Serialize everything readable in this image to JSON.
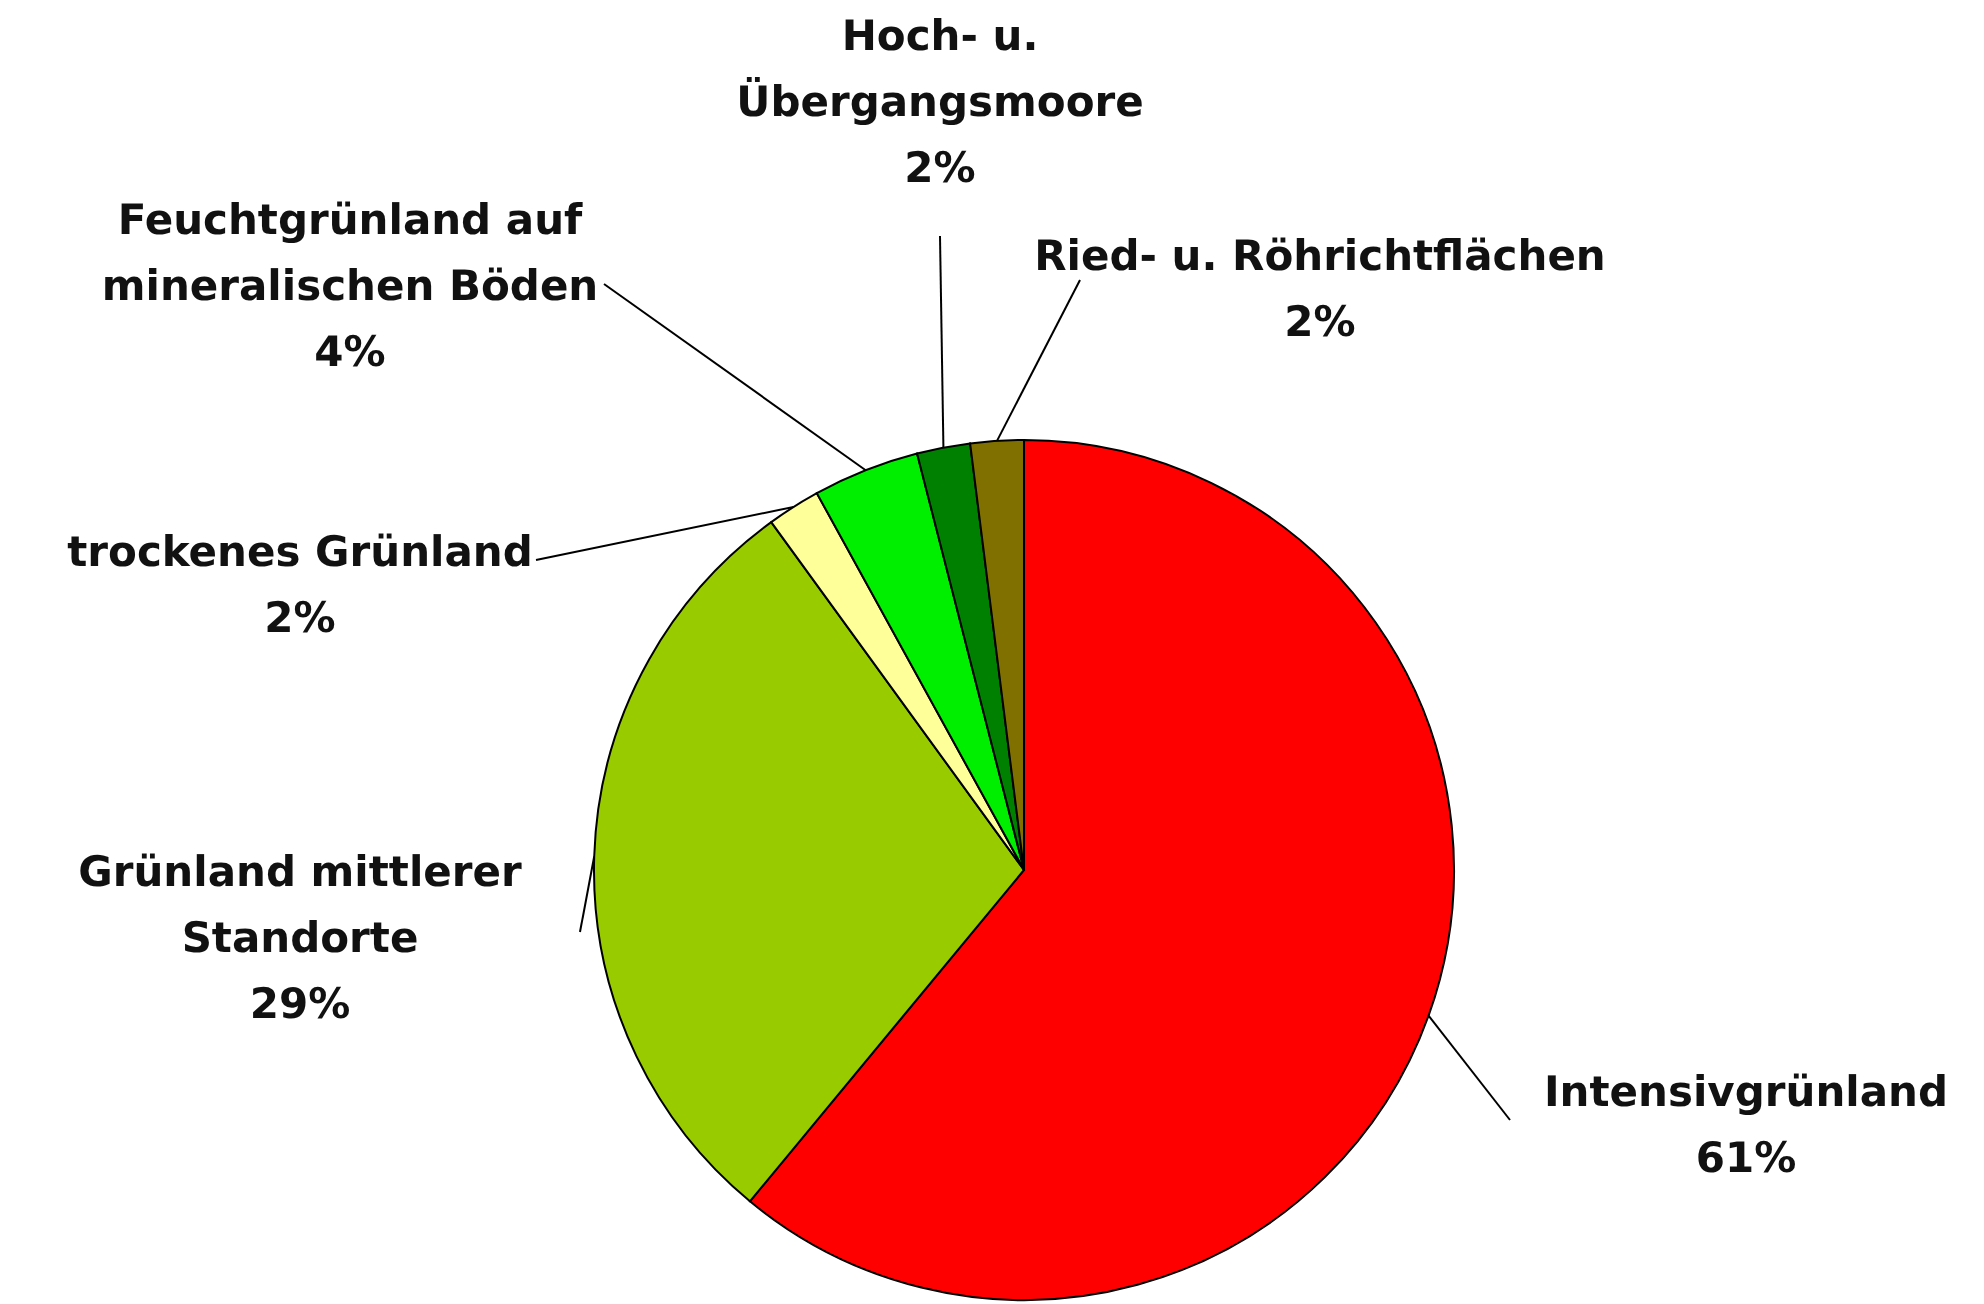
{
  "chart_data": {
    "type": "pie",
    "categories": [
      "Intensivgrünland",
      "Grünland mittlerer\nStandorte",
      "trockenes Grünland",
      "Feuchtgrünland auf\nmineralischen Böden",
      "Hoch- u.\nÜbergangsmoore",
      "Ried- u. Röhrichtflächen"
    ],
    "values": [
      61,
      29,
      2,
      4,
      2,
      2
    ],
    "value_labels": [
      "61%",
      "29%",
      "2%",
      "4%",
      "2%",
      "2%"
    ],
    "colors": [
      "#ff0000",
      "#99cc00",
      "#ffff99",
      "#00ee00",
      "#008000",
      "#807000"
    ]
  }
}
